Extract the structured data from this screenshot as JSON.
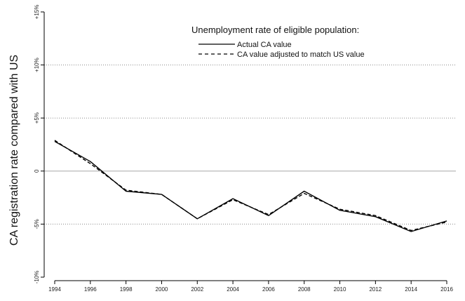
{
  "chart_data": {
    "type": "line",
    "ylabel": "CA registration rate compared with US",
    "xlabel": "",
    "xlim": [
      1994,
      2016
    ],
    "ylim": [
      -10,
      15
    ],
    "x_ticks": [
      "1994",
      "1996",
      "1998",
      "2000",
      "2002",
      "2004",
      "2006",
      "2008",
      "2010",
      "2012",
      "2014",
      "2016"
    ],
    "y_ticks": [
      {
        "value": -10,
        "label": "-10%"
      },
      {
        "value": -5,
        "label": "-5%"
      },
      {
        "value": 0,
        "label": "0"
      },
      {
        "value": 5,
        "label": "+5%"
      },
      {
        "value": 10,
        "label": "+10%"
      },
      {
        "value": 15,
        "label": "+15%"
      }
    ],
    "grid": "horizontal dotted at -5, +5, +10; solid gray at 0",
    "legend": {
      "title": "Unemployment rate of eligible population:",
      "placement": "top-right"
    },
    "series": [
      {
        "name": "Actual CA value",
        "style": "solid",
        "color": "#000000",
        "x": [
          1994,
          1996,
          1998,
          2000,
          2002,
          2004,
          2006,
          2008,
          2010,
          2012,
          2014,
          2016
        ],
        "y": [
          2.8,
          0.9,
          -1.9,
          -2.2,
          -4.5,
          -2.6,
          -4.2,
          -1.9,
          -3.7,
          -4.3,
          -5.7,
          -4.7
        ]
      },
      {
        "name": "CA value adjusted to match US value",
        "style": "dashed",
        "color": "#000000",
        "x": [
          1994,
          1996,
          1998,
          2000,
          2002,
          2004,
          2006,
          2008,
          2010,
          2012,
          2014,
          2016
        ],
        "y": [
          2.9,
          0.7,
          -1.8,
          -2.2,
          -4.5,
          -2.7,
          -4.1,
          -2.1,
          -3.6,
          -4.2,
          -5.6,
          -4.8
        ]
      }
    ]
  }
}
